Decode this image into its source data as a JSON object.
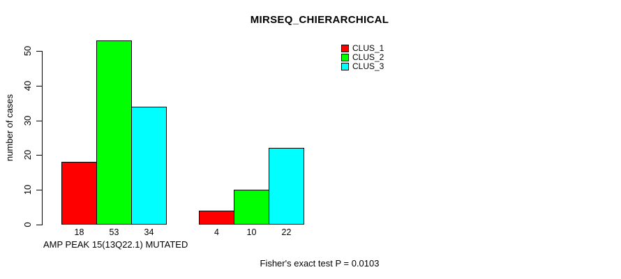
{
  "chart_data": {
    "type": "bar",
    "title": "MIRSEQ_CHIERARCHICAL",
    "ylabel": "number of cases",
    "xlabel": "AMP PEAK 15(13Q22.1) MUTATED",
    "ylim": [
      0,
      50
    ],
    "yticks": [
      0,
      10,
      20,
      30,
      40,
      50
    ],
    "grid": false,
    "categories": [
      "AMP PEAK 15(13Q22.1) MUTATED",
      ""
    ],
    "series": [
      {
        "name": "CLUS_1",
        "color": "#ff0000",
        "values": [
          18,
          4
        ]
      },
      {
        "name": "CLUS_2",
        "color": "#00ff00",
        "values": [
          53,
          10
        ]
      },
      {
        "name": "CLUS_3",
        "color": "#00ffff",
        "values": [
          34,
          22
        ]
      }
    ],
    "bar_value_labels": [
      [
        "18",
        "53",
        "34"
      ],
      [
        "4",
        "10",
        "22"
      ]
    ],
    "legend_position": "top-right",
    "annotation": "Fisher's exact test P = 0.0103"
  },
  "colors": {
    "background": "#ffffff",
    "axis": "#000000",
    "text": "#000000"
  }
}
